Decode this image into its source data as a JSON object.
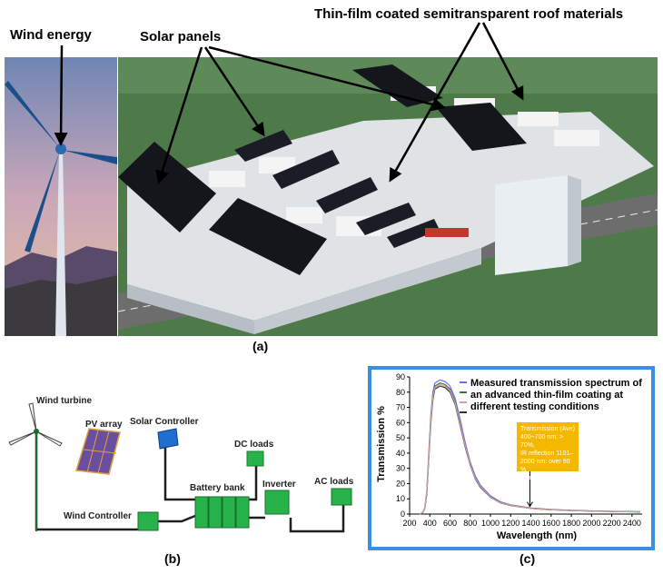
{
  "panel_a": {
    "label": "(a)",
    "callouts": {
      "wind": "Wind energy",
      "solar": "Solar panels",
      "thin_film": "Thin-film coated semitransparent roof materials"
    }
  },
  "panel_b": {
    "label": "(b)",
    "components": {
      "wind_turbine": "Wind turbine",
      "pv_array": "PV array",
      "solar_controller": "Solar Controller",
      "dc_loads": "DC loads",
      "battery_bank": "Battery bank",
      "inverter": "Inverter",
      "ac_loads": "AC loads",
      "wind_controller": "Wind Controller"
    }
  },
  "panel_c": {
    "label": "(c)",
    "annotation": [
      "Transmission (Ave)",
      "400~700 nm: > 70%,",
      "IR reflection 1101–",
      "2000 nm: over 90 %",
      "by energy."
    ]
  },
  "chart_data": {
    "type": "line",
    "title": "",
    "legend_text": "Measured transmission spectrum of an advanced thin-film coating at different testing conditions",
    "xlabel": "Wavelength (nm)",
    "ylabel": "Transmission %",
    "xlim": [
      200,
      2500
    ],
    "ylim": [
      0,
      90
    ],
    "x_ticks": [
      200,
      400,
      600,
      800,
      1000,
      1200,
      1400,
      1600,
      1800,
      2000,
      2200,
      2400
    ],
    "y_ticks": [
      0,
      10,
      20,
      30,
      40,
      50,
      60,
      70,
      80,
      90
    ],
    "x": [
      300,
      330,
      350,
      370,
      390,
      410,
      430,
      450,
      500,
      550,
      600,
      650,
      700,
      750,
      800,
      850,
      900,
      1000,
      1100,
      1200,
      1300,
      1400,
      1500,
      1600,
      1800,
      2000,
      2200,
      2480
    ],
    "series": [
      {
        "color": "#6b6bff",
        "values": [
          0,
          1,
          4,
          15,
          40,
          65,
          80,
          86,
          88,
          87,
          84,
          76,
          62,
          47,
          34,
          25,
          19,
          12,
          8,
          6,
          5,
          4,
          3.5,
          3,
          2.5,
          2,
          1.8,
          1.5
        ]
      },
      {
        "color": "#3a7a3a",
        "values": [
          0,
          1,
          4,
          14,
          38,
          63,
          78,
          84,
          86,
          85,
          82,
          74,
          60,
          45,
          33,
          24,
          18,
          11.5,
          7.5,
          5.8,
          4.8,
          3.8,
          3.3,
          2.9,
          2.4,
          2,
          1.8,
          1.5
        ]
      },
      {
        "color": "#333333",
        "values": [
          0,
          1,
          3.5,
          13,
          36,
          60,
          75,
          82,
          84,
          83,
          80,
          72,
          58,
          44,
          32,
          23,
          17.5,
          11,
          7.3,
          5.6,
          4.6,
          3.7,
          3.2,
          2.8,
          2.3,
          1.9,
          1.7,
          1.4
        ]
      },
      {
        "color": "#d4a0a0",
        "values": [
          0,
          1,
          3.8,
          14,
          37,
          62,
          77,
          83,
          85,
          84,
          81,
          73,
          59,
          45,
          32.5,
          23.5,
          18,
          11.2,
          7.4,
          5.7,
          4.7,
          3.7,
          3.2,
          2.8,
          2.3,
          1.9,
          1.7,
          1.4
        ]
      }
    ]
  }
}
